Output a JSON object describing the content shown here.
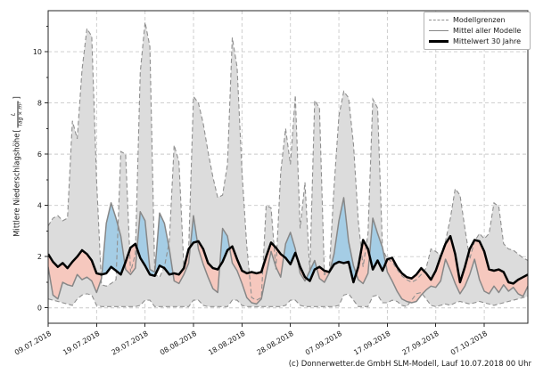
{
  "footer_text": "(c) Donnerwetter.de GmbH SLM-Modell, Lauf 10.07.2018 00 Uhr",
  "y_axis": {
    "label": "Mittlere Niederschlagshöhe",
    "bracket_open": "[",
    "unit_numerator": "L",
    "unit_denominator": "Tag × m²",
    "bracket_close": "]"
  },
  "legend": {
    "items": [
      {
        "label": "Modellgrenzen",
        "style": "dashed-gray"
      },
      {
        "label": "Mittel aller Modelle",
        "style": "solid-gray"
      },
      {
        "label": "Mittelwert 30 Jahre",
        "style": "solid-black-thick"
      }
    ]
  },
  "chart_data": {
    "type": "line",
    "title": "",
    "xlabel": "",
    "ylabel": "Mittlere Niederschlagshöhe [L/(Tag × m²)]",
    "grid": true,
    "legend_position": "upper right",
    "ylim": [
      -0.6,
      11.6
    ],
    "xlim_days": [
      0,
      99
    ],
    "y_ticks": [
      0,
      2,
      4,
      6,
      8,
      10
    ],
    "x_tick_days": [
      0,
      10,
      20,
      30,
      40,
      50,
      60,
      70,
      80,
      90
    ],
    "x_tick_labels": [
      "09.07.2018",
      "19.07.2018",
      "29.07.2018",
      "08.08.2018",
      "18.08.2018",
      "28.08.2018",
      "07.09.2018",
      "17.09.2018",
      "27.09.2018",
      "07.10.2018"
    ],
    "colors": {
      "envelope_fill": "#dcdcdc",
      "bound_line": "#8f8f8f",
      "model_mean_line": "#878787",
      "mean30_line": "#000000",
      "above_normal_fill": "#a5cde5",
      "below_normal_fill": "#f6c8be",
      "grid": "#c9c9c9",
      "spine": "#262626"
    },
    "series": [
      {
        "name": "Modellgrenzen (obere Grenze)",
        "role": "upper_bound",
        "values": [
          3.2,
          3.5,
          3.6,
          3.4,
          3.5,
          7.3,
          6.6,
          9.3,
          10.9,
          10.6,
          5.0,
          0.9,
          0.85,
          0.95,
          1.1,
          6.1,
          6.0,
          1.4,
          2.1,
          9.2,
          11.15,
          10.2,
          1.3,
          1.2,
          1.6,
          2.6,
          6.35,
          5.7,
          1.6,
          2.3,
          8.25,
          8.0,
          7.2,
          6.1,
          5.1,
          4.3,
          4.4,
          5.6,
          10.55,
          9.4,
          5.3,
          2.4,
          0.4,
          0.3,
          0.4,
          4.0,
          3.9,
          1.5,
          5.3,
          7.0,
          5.6,
          8.3,
          3.1,
          4.9,
          1.4,
          8.1,
          7.8,
          1.3,
          1.4,
          4.7,
          7.5,
          8.45,
          8.2,
          6.4,
          3.4,
          1.6,
          2.9,
          8.15,
          7.8,
          2.3,
          1.9,
          1.8,
          1.5,
          1.25,
          1.1,
          1.0,
          1.1,
          1.3,
          1.55,
          2.3,
          2.2,
          2.05,
          2.6,
          3.5,
          4.65,
          4.4,
          3.1,
          1.9,
          2.6,
          2.9,
          2.7,
          2.9,
          4.1,
          3.95,
          2.5,
          2.3,
          2.25,
          2.1,
          1.95,
          1.85
        ]
      },
      {
        "name": "Modellgrenzen (untere Grenze)",
        "role": "lower_bound",
        "values": [
          0.35,
          0.3,
          0.25,
          0.2,
          0.15,
          0.1,
          0.35,
          0.5,
          0.55,
          0.5,
          0.1,
          0.05,
          0.05,
          0.05,
          0.05,
          0.05,
          0.05,
          0.05,
          0.05,
          0.1,
          0.3,
          0.3,
          0.05,
          0.05,
          0.05,
          0.05,
          0.05,
          0.05,
          0.05,
          0.05,
          0.3,
          0.3,
          0.1,
          0.05,
          0.05,
          0.05,
          0.05,
          0.05,
          0.3,
          0.3,
          0.1,
          0.05,
          0.05,
          0.05,
          0.05,
          0.05,
          0.05,
          0.05,
          0.05,
          0.1,
          0.3,
          0.3,
          0.1,
          0.05,
          0.05,
          0.05,
          0.05,
          0.05,
          0.05,
          0.05,
          0.1,
          0.5,
          0.55,
          0.3,
          0.05,
          0.05,
          0.05,
          0.45,
          0.5,
          0.2,
          0.2,
          0.3,
          0.25,
          0.1,
          0.05,
          0.3,
          0.55,
          0.6,
          0.35,
          0.1,
          0.05,
          0.1,
          0.15,
          0.1,
          0.2,
          0.25,
          0.2,
          0.15,
          0.2,
          0.25,
          0.2,
          0.15,
          0.1,
          0.15,
          0.2,
          0.25,
          0.3,
          0.35,
          0.4,
          0.45
        ]
      },
      {
        "name": "Mittel aller Modelle",
        "role": "model_mean",
        "values": [
          1.6,
          0.5,
          0.35,
          1.0,
          0.9,
          0.85,
          1.3,
          1.1,
          1.2,
          1.05,
          0.6,
          1.15,
          3.3,
          4.1,
          3.5,
          2.8,
          1.5,
          1.3,
          1.55,
          3.75,
          3.4,
          1.5,
          1.4,
          3.7,
          3.3,
          2.3,
          1.05,
          0.95,
          1.3,
          1.75,
          3.6,
          2.3,
          1.7,
          1.2,
          0.75,
          0.6,
          3.1,
          2.8,
          1.75,
          1.45,
          0.95,
          0.4,
          0.2,
          0.15,
          0.35,
          1.3,
          2.2,
          1.6,
          1.2,
          2.5,
          2.95,
          2.3,
          1.35,
          1.05,
          1.45,
          1.85,
          1.15,
          1.0,
          1.35,
          2.1,
          3.4,
          4.3,
          2.6,
          1.65,
          1.1,
          0.95,
          1.35,
          3.5,
          2.9,
          2.35,
          1.4,
          1.05,
          0.65,
          0.35,
          0.25,
          0.2,
          0.25,
          0.5,
          0.7,
          0.85,
          0.8,
          1.05,
          1.9,
          1.45,
          0.95,
          0.55,
          0.85,
          1.3,
          1.9,
          1.1,
          0.65,
          0.55,
          0.85,
          0.6,
          0.9,
          0.65,
          0.8,
          0.55,
          0.45,
          0.85
        ]
      },
      {
        "name": "Mittelwert 30 Jahre",
        "role": "mean_30y",
        "values": [
          2.1,
          1.8,
          1.6,
          1.75,
          1.55,
          1.8,
          2.0,
          2.25,
          2.1,
          1.85,
          1.35,
          1.3,
          1.35,
          1.6,
          1.45,
          1.3,
          1.8,
          2.35,
          2.5,
          1.95,
          1.65,
          1.3,
          1.25,
          1.65,
          1.55,
          1.3,
          1.35,
          1.3,
          1.55,
          2.3,
          2.55,
          2.6,
          2.3,
          1.75,
          1.55,
          1.5,
          1.8,
          2.25,
          2.4,
          1.9,
          1.45,
          1.35,
          1.4,
          1.35,
          1.4,
          2.0,
          2.55,
          2.35,
          2.1,
          1.95,
          1.7,
          2.15,
          1.6,
          1.2,
          1.05,
          1.5,
          1.6,
          1.45,
          1.4,
          1.7,
          1.8,
          1.75,
          1.8,
          1.0,
          1.6,
          2.65,
          2.3,
          1.5,
          1.85,
          1.45,
          1.9,
          1.95,
          1.6,
          1.35,
          1.2,
          1.15,
          1.3,
          1.55,
          1.35,
          1.1,
          1.45,
          2.0,
          2.5,
          2.8,
          2.1,
          1.0,
          1.6,
          2.3,
          2.65,
          2.6,
          2.2,
          1.5,
          1.45,
          1.5,
          1.4,
          1.0,
          0.95,
          1.1,
          1.2,
          1.3
        ]
      }
    ]
  }
}
